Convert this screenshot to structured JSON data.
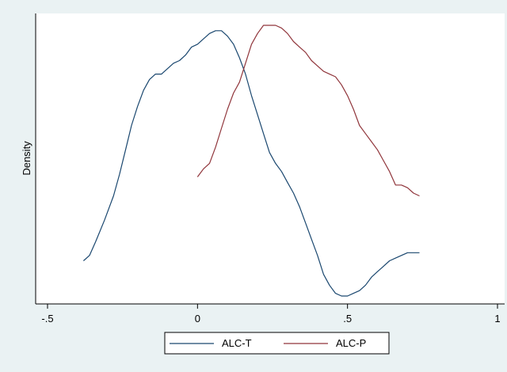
{
  "chart_data": {
    "type": "line",
    "title": "",
    "xlabel": "",
    "ylabel": "Density",
    "xlim": [
      -0.5,
      1
    ],
    "xticks": [
      -0.5,
      0,
      0.5,
      1
    ],
    "xtick_labels": [
      "-.5",
      "0",
      ".5",
      "1"
    ],
    "yticks_shown": false,
    "grid": false,
    "legend_position": "bottom",
    "series": [
      {
        "name": "ALC-T",
        "color": "#1a476f",
        "x": [
          -0.38,
          -0.36,
          -0.34,
          -0.31,
          -0.28,
          -0.26,
          -0.24,
          -0.22,
          -0.2,
          -0.18,
          -0.16,
          -0.14,
          -0.12,
          -0.1,
          -0.08,
          -0.06,
          -0.04,
          -0.02,
          0.0,
          0.02,
          0.04,
          0.06,
          0.08,
          0.1,
          0.12,
          0.14,
          0.16,
          0.18,
          0.2,
          0.22,
          0.24,
          0.26,
          0.28,
          0.3,
          0.32,
          0.34,
          0.36,
          0.38,
          0.4,
          0.42,
          0.44,
          0.46,
          0.48,
          0.5,
          0.52,
          0.54,
          0.56,
          0.58,
          0.6,
          0.62,
          0.64,
          0.66,
          0.68,
          0.7,
          0.72,
          0.74
        ],
        "y": [
          0.13,
          0.15,
          0.2,
          0.28,
          0.37,
          0.45,
          0.54,
          0.63,
          0.7,
          0.76,
          0.8,
          0.82,
          0.82,
          0.84,
          0.86,
          0.87,
          0.89,
          0.92,
          0.93,
          0.95,
          0.97,
          0.98,
          0.98,
          0.96,
          0.93,
          0.88,
          0.82,
          0.74,
          0.67,
          0.6,
          0.53,
          0.49,
          0.46,
          0.42,
          0.38,
          0.33,
          0.27,
          0.21,
          0.15,
          0.08,
          0.04,
          0.01,
          0.0,
          0.0,
          0.01,
          0.02,
          0.04,
          0.07,
          0.09,
          0.11,
          0.13,
          0.14,
          0.15,
          0.16,
          0.16,
          0.16
        ]
      },
      {
        "name": "ALC-P",
        "color": "#90353b",
        "x": [
          0.0,
          0.02,
          0.04,
          0.06,
          0.08,
          0.1,
          0.12,
          0.14,
          0.16,
          0.18,
          0.2,
          0.22,
          0.24,
          0.26,
          0.28,
          0.3,
          0.32,
          0.34,
          0.36,
          0.38,
          0.4,
          0.42,
          0.44,
          0.46,
          0.48,
          0.5,
          0.52,
          0.54,
          0.56,
          0.58,
          0.6,
          0.62,
          0.64,
          0.66,
          0.68,
          0.7,
          0.72,
          0.74
        ],
        "y": [
          0.44,
          0.47,
          0.49,
          0.55,
          0.62,
          0.69,
          0.75,
          0.79,
          0.86,
          0.93,
          0.97,
          1.0,
          1.0,
          1.0,
          0.99,
          0.97,
          0.94,
          0.92,
          0.9,
          0.87,
          0.85,
          0.83,
          0.82,
          0.81,
          0.78,
          0.74,
          0.69,
          0.63,
          0.6,
          0.57,
          0.54,
          0.5,
          0.46,
          0.41,
          0.41,
          0.4,
          0.38,
          0.37
        ]
      }
    ]
  }
}
